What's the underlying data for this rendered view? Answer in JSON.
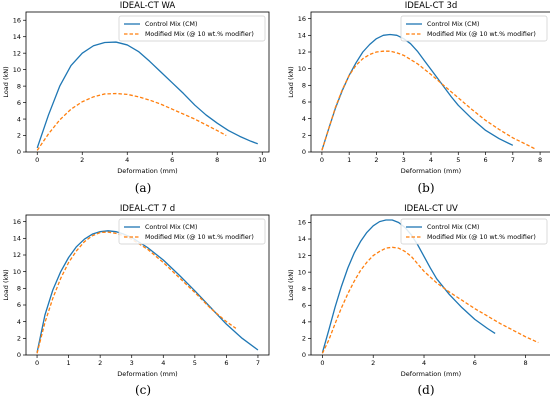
{
  "chart_data": [
    {
      "type": "line",
      "caption": "(a)",
      "title": "IDEAL-CT WA",
      "xlabel": "Deformation (mm)",
      "ylabel": "Load (kN)",
      "xlim": [
        -0.5,
        10.3
      ],
      "ylim": [
        0,
        17
      ],
      "xticks": [
        0,
        2,
        4,
        6,
        8,
        10
      ],
      "yticks": [
        0,
        2,
        4,
        6,
        8,
        10,
        12,
        14,
        16
      ],
      "grid": false,
      "legend": "top-right",
      "series": [
        {
          "name": "Control Mix (CM)",
          "color": "#1f77b4",
          "style": "solid",
          "x": [
            0,
            0.5,
            1,
            1.5,
            2,
            2.5,
            3,
            3.5,
            4,
            4.5,
            5,
            5.5,
            6,
            6.5,
            7,
            7.5,
            8,
            8.5,
            9,
            9.5,
            9.8
          ],
          "y": [
            0.5,
            4.5,
            8.0,
            10.5,
            12.0,
            12.9,
            13.3,
            13.35,
            13.0,
            12.2,
            11.0,
            9.7,
            8.4,
            7.1,
            5.7,
            4.5,
            3.5,
            2.6,
            1.9,
            1.3,
            1.0
          ]
        },
        {
          "name": "Modified Mix (@ 10 wt.% modifier)",
          "color": "#ff7f0e",
          "style": "dashed",
          "x": [
            0,
            0.5,
            1,
            1.5,
            2,
            2.5,
            3,
            3.5,
            4,
            4.5,
            5,
            5.5,
            6,
            6.5,
            7,
            7.5,
            8,
            8.4
          ],
          "y": [
            0.2,
            2.2,
            3.9,
            5.2,
            6.1,
            6.7,
            7.05,
            7.1,
            7.0,
            6.7,
            6.3,
            5.8,
            5.2,
            4.6,
            4.0,
            3.3,
            2.6,
            2.0
          ]
        }
      ]
    },
    {
      "type": "line",
      "caption": "(b)",
      "title": "IDEAL-CT 3d",
      "xlabel": "Deformation (mm)",
      "ylabel": "Load (kN)",
      "xlim": [
        -0.4,
        8.4
      ],
      "ylim": [
        0,
        16.8
      ],
      "xticks": [
        0,
        1,
        2,
        3,
        4,
        5,
        6,
        7,
        8
      ],
      "yticks": [
        0,
        2,
        4,
        6,
        8,
        10,
        12,
        14,
        16
      ],
      "grid": false,
      "legend": "top-right",
      "series": [
        {
          "name": "Control Mix (CM)",
          "color": "#1f77b4",
          "style": "solid",
          "x": [
            0,
            0.25,
            0.5,
            0.75,
            1,
            1.25,
            1.5,
            1.75,
            2,
            2.25,
            2.5,
            2.75,
            3,
            3.25,
            3.5,
            3.75,
            4,
            4.25,
            4.5,
            4.75,
            5,
            5.5,
            6,
            6.5,
            7
          ],
          "y": [
            0.2,
            2.8,
            5.3,
            7.4,
            9.2,
            10.7,
            12.0,
            12.9,
            13.6,
            14.0,
            14.1,
            14.0,
            13.6,
            13.0,
            12.1,
            11.0,
            9.9,
            8.8,
            7.7,
            6.6,
            5.6,
            4.0,
            2.6,
            1.6,
            0.8
          ]
        },
        {
          "name": "Modified Mix (@ 10 wt.% modifier)",
          "color": "#ff7f0e",
          "style": "dashed",
          "x": [
            0,
            0.25,
            0.5,
            0.75,
            1,
            1.25,
            1.5,
            1.75,
            2,
            2.25,
            2.5,
            2.75,
            3,
            3.5,
            4,
            4.5,
            5,
            5.5,
            6,
            6.5,
            7,
            7.5,
            7.8
          ],
          "y": [
            0.2,
            2.8,
            5.4,
            7.5,
            9.2,
            10.4,
            11.2,
            11.7,
            12.0,
            12.1,
            12.1,
            11.9,
            11.6,
            10.6,
            9.3,
            7.9,
            6.5,
            5.1,
            3.8,
            2.7,
            1.7,
            0.9,
            0.4
          ]
        }
      ]
    },
    {
      "type": "line",
      "caption": "(c)",
      "title": "IDEAL-CT 7 d",
      "xlabel": "Deformation (mm)",
      "ylabel": "Load (kN)",
      "xlim": [
        -0.35,
        7.35
      ],
      "ylim": [
        0,
        16.8
      ],
      "xticks": [
        0,
        1,
        2,
        3,
        4,
        5,
        6,
        7
      ],
      "yticks": [
        0,
        2,
        4,
        6,
        8,
        10,
        12,
        14,
        16
      ],
      "grid": false,
      "legend": "top-right",
      "series": [
        {
          "name": "Control Mix (CM)",
          "color": "#1f77b4",
          "style": "solid",
          "x": [
            0,
            0.25,
            0.5,
            0.75,
            1,
            1.25,
            1.5,
            1.75,
            2,
            2.25,
            2.5,
            2.75,
            3,
            3.5,
            4,
            4.5,
            5,
            5.5,
            6,
            6.5,
            7
          ],
          "y": [
            0.3,
            4.8,
            7.8,
            10.0,
            11.7,
            13.0,
            13.9,
            14.5,
            14.8,
            14.9,
            14.8,
            14.5,
            14.1,
            12.9,
            11.4,
            9.6,
            7.7,
            5.7,
            3.7,
            2.0,
            0.6
          ]
        },
        {
          "name": "Modified Mix (@ 10 wt.% modifier)",
          "color": "#ff7f0e",
          "style": "dashed",
          "x": [
            0,
            0.25,
            0.5,
            0.75,
            1,
            1.25,
            1.5,
            1.75,
            2,
            2.25,
            2.5,
            2.75,
            3,
            3.5,
            4,
            4.5,
            5,
            5.5,
            6,
            6.3
          ],
          "y": [
            0.2,
            3.9,
            6.8,
            9.2,
            11.1,
            12.5,
            13.6,
            14.3,
            14.7,
            14.75,
            14.6,
            14.3,
            13.9,
            12.7,
            11.1,
            9.3,
            7.5,
            5.6,
            4.0,
            3.2
          ]
        }
      ]
    },
    {
      "type": "line",
      "caption": "(d)",
      "title": "IDEAL-CT UV",
      "xlabel": "Deformation (mm)",
      "ylabel": "Load (kN)",
      "xlim": [
        -0.45,
        9.0
      ],
      "ylim": [
        0,
        16.9
      ],
      "xticks": [
        0,
        2,
        4,
        6,
        8
      ],
      "yticks": [
        0,
        2,
        4,
        6,
        8,
        10,
        12,
        14,
        16
      ],
      "grid": false,
      "legend": "top-right",
      "series": [
        {
          "name": "Control Mix (CM)",
          "color": "#1f77b4",
          "style": "solid",
          "x": [
            0,
            0.25,
            0.5,
            0.75,
            1,
            1.25,
            1.5,
            1.75,
            2,
            2.25,
            2.5,
            2.75,
            3,
            3.25,
            3.5,
            3.75,
            4,
            4.25,
            4.5,
            5,
            5.5,
            6,
            6.5,
            6.8
          ],
          "y": [
            0.3,
            3.0,
            5.8,
            8.3,
            10.5,
            12.3,
            13.7,
            14.8,
            15.6,
            16.1,
            16.3,
            16.3,
            16.0,
            15.4,
            14.5,
            13.3,
            11.9,
            10.5,
            9.2,
            7.3,
            5.7,
            4.3,
            3.2,
            2.6
          ]
        },
        {
          "name": "Modified Mix (@ 10 wt.% modifier)",
          "color": "#ff7f0e",
          "style": "dashed",
          "x": [
            0,
            0.25,
            0.5,
            0.75,
            1,
            1.25,
            1.5,
            1.75,
            2,
            2.25,
            2.5,
            2.75,
            3,
            3.25,
            3.5,
            4,
            4.5,
            5,
            5.5,
            6,
            6.5,
            7,
            7.5,
            8,
            8.5
          ],
          "y": [
            0.2,
            1.8,
            3.8,
            5.7,
            7.4,
            8.9,
            10.2,
            11.2,
            12.0,
            12.5,
            12.9,
            13.0,
            12.9,
            12.5,
            11.9,
            10.1,
            8.7,
            7.6,
            6.6,
            5.6,
            4.7,
            3.8,
            3.0,
            2.2,
            1.5
          ]
        }
      ]
    }
  ]
}
